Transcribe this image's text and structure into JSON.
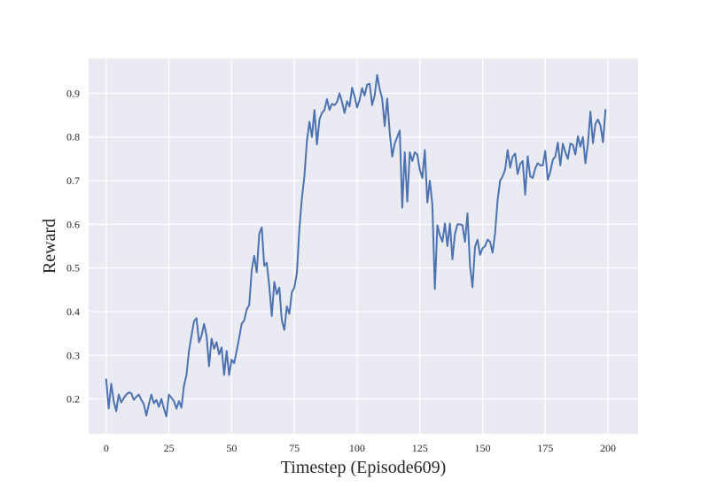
{
  "chart_data": {
    "type": "line",
    "title": "",
    "xlabel": "Timestep (Episode609)",
    "ylabel": "Reward",
    "xlim": [
      -7,
      212
    ],
    "ylim": [
      0.12,
      0.98
    ],
    "xticks": [
      0,
      25,
      50,
      75,
      100,
      125,
      150,
      175,
      200
    ],
    "yticks": [
      0.2,
      0.3,
      0.4,
      0.5,
      0.6,
      0.7,
      0.8,
      0.9
    ],
    "grid": true,
    "background": "#EAEAF2",
    "grid_color": "#FFFFFF",
    "series": [
      {
        "color": "#4C72B0",
        "x_start": 0,
        "x_step": 1,
        "values": [
          0.245,
          0.178,
          0.235,
          0.195,
          0.172,
          0.21,
          0.192,
          0.202,
          0.21,
          0.215,
          0.213,
          0.198,
          0.205,
          0.21,
          0.198,
          0.188,
          0.162,
          0.188,
          0.21,
          0.19,
          0.198,
          0.182,
          0.2,
          0.178,
          0.16,
          0.21,
          0.203,
          0.195,
          0.178,
          0.195,
          0.18,
          0.23,
          0.255,
          0.31,
          0.345,
          0.378,
          0.385,
          0.33,
          0.345,
          0.372,
          0.345,
          0.275,
          0.338,
          0.315,
          0.33,
          0.302,
          0.318,
          0.255,
          0.31,
          0.255,
          0.29,
          0.282,
          0.31,
          0.34,
          0.372,
          0.38,
          0.405,
          0.415,
          0.495,
          0.528,
          0.49,
          0.578,
          0.593,
          0.505,
          0.512,
          0.458,
          0.39,
          0.468,
          0.44,
          0.455,
          0.38,
          0.358,
          0.412,
          0.395,
          0.445,
          0.455,
          0.488,
          0.59,
          0.66,
          0.71,
          0.79,
          0.835,
          0.8,
          0.862,
          0.783,
          0.84,
          0.855,
          0.862,
          0.887,
          0.862,
          0.876,
          0.873,
          0.88,
          0.9,
          0.88,
          0.855,
          0.882,
          0.87,
          0.913,
          0.893,
          0.868,
          0.885,
          0.912,
          0.895,
          0.92,
          0.922,
          0.873,
          0.895,
          0.942,
          0.91,
          0.888,
          0.825,
          0.888,
          0.81,
          0.755,
          0.785,
          0.8,
          0.815,
          0.638,
          0.765,
          0.652,
          0.765,
          0.745,
          0.765,
          0.76,
          0.725,
          0.706,
          0.77,
          0.65,
          0.7,
          0.645,
          0.452,
          0.598,
          0.575,
          0.56,
          0.602,
          0.55,
          0.602,
          0.52,
          0.578,
          0.6,
          0.6,
          0.598,
          0.56,
          0.625,
          0.505,
          0.456,
          0.548,
          0.565,
          0.53,
          0.545,
          0.55,
          0.565,
          0.56,
          0.535,
          0.58,
          0.655,
          0.7,
          0.71,
          0.725,
          0.77,
          0.73,
          0.755,
          0.762,
          0.715,
          0.738,
          0.745,
          0.668,
          0.756,
          0.71,
          0.706,
          0.728,
          0.74,
          0.735,
          0.735,
          0.768,
          0.702,
          0.72,
          0.748,
          0.755,
          0.787,
          0.735,
          0.785,
          0.765,
          0.75,
          0.785,
          0.782,
          0.76,
          0.802,
          0.778,
          0.8,
          0.74,
          0.785,
          0.858,
          0.786,
          0.83,
          0.84,
          0.826,
          0.788,
          0.862
        ]
      }
    ]
  }
}
